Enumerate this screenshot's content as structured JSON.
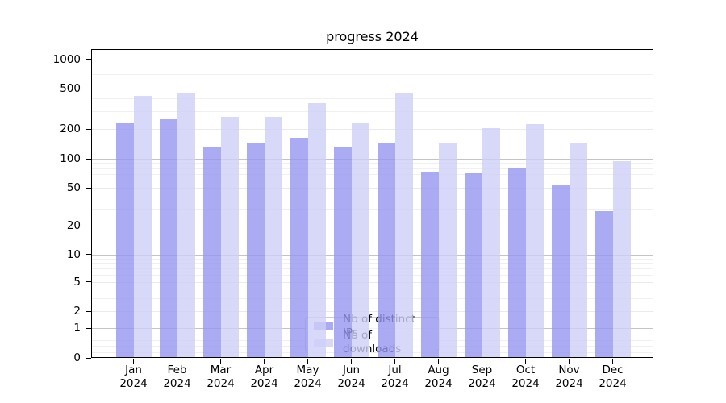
{
  "chart_data": {
    "type": "bar",
    "title": "progress 2024",
    "categories": [
      "Jan 2024",
      "Feb 2024",
      "Mar 2024",
      "Apr 2024",
      "May 2024",
      "Jun 2024",
      "Jul 2024",
      "Aug 2024",
      "Sep 2024",
      "Oct 2024",
      "Nov 2024",
      "Dec 2024"
    ],
    "x_tick_month": [
      "Jan",
      "Feb",
      "Mar",
      "Apr",
      "May",
      "Jun",
      "Jul",
      "Aug",
      "Sep",
      "Oct",
      "Nov",
      "Dec"
    ],
    "x_tick_year": "2024",
    "series": [
      {
        "name": "Nb of distinct IPs",
        "color": "rgba(150,150,240,0.8)",
        "values": [
          228,
          246,
          127,
          144,
          160,
          128,
          139,
          72,
          69,
          79,
          52,
          28
        ]
      },
      {
        "name": "Nb of downloads",
        "color": "rgba(206,206,248,0.8)",
        "values": [
          418,
          450,
          260,
          258,
          352,
          228,
          437,
          144,
          200,
          220,
          143,
          93
        ]
      }
    ],
    "yscale": "symlog",
    "ytick_labels": [
      "1000",
      "500",
      "200",
      "100",
      "50",
      "20",
      "10",
      "5",
      "2",
      "1",
      "0"
    ],
    "ytick_values": [
      1000,
      500,
      200,
      100,
      50,
      20,
      10,
      5,
      2,
      1,
      0
    ],
    "ylim": [
      0,
      1260
    ],
    "grid": "horizontal major+minor",
    "legend_position": "lower center"
  },
  "colors": {
    "bar_ips": "rgba(150,150,240,0.8)",
    "bar_downloads": "rgba(206,206,248,0.8)",
    "grid_power10": "#c4c4c4",
    "grid_major": "#eaeaea",
    "grid_minor": "#f0f0f0",
    "spine": "#000000",
    "legend_border": "#cccccc",
    "legend_bg": "rgba(255,255,255,0.8)",
    "text": "#000000"
  }
}
